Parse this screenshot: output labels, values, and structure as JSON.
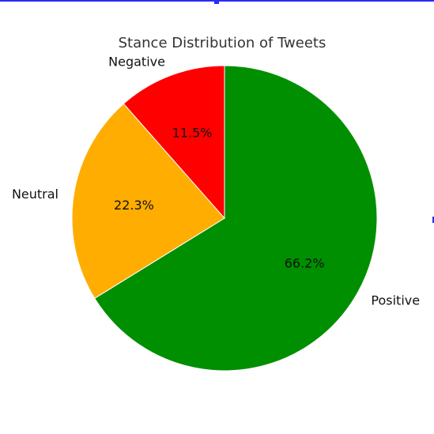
{
  "chart_data": {
    "type": "pie",
    "title": "Stance Distribution of Tweets",
    "slices": [
      {
        "label": "Positive",
        "value": 66.2,
        "pct_label": "66.2%",
        "color": "#008f00"
      },
      {
        "label": "Neutral",
        "value": 22.3,
        "pct_label": "22.3%",
        "color": "#ffad00"
      },
      {
        "label": "Negative",
        "value": 11.5,
        "pct_label": "11.5%",
        "color": "#ff0000"
      }
    ]
  }
}
